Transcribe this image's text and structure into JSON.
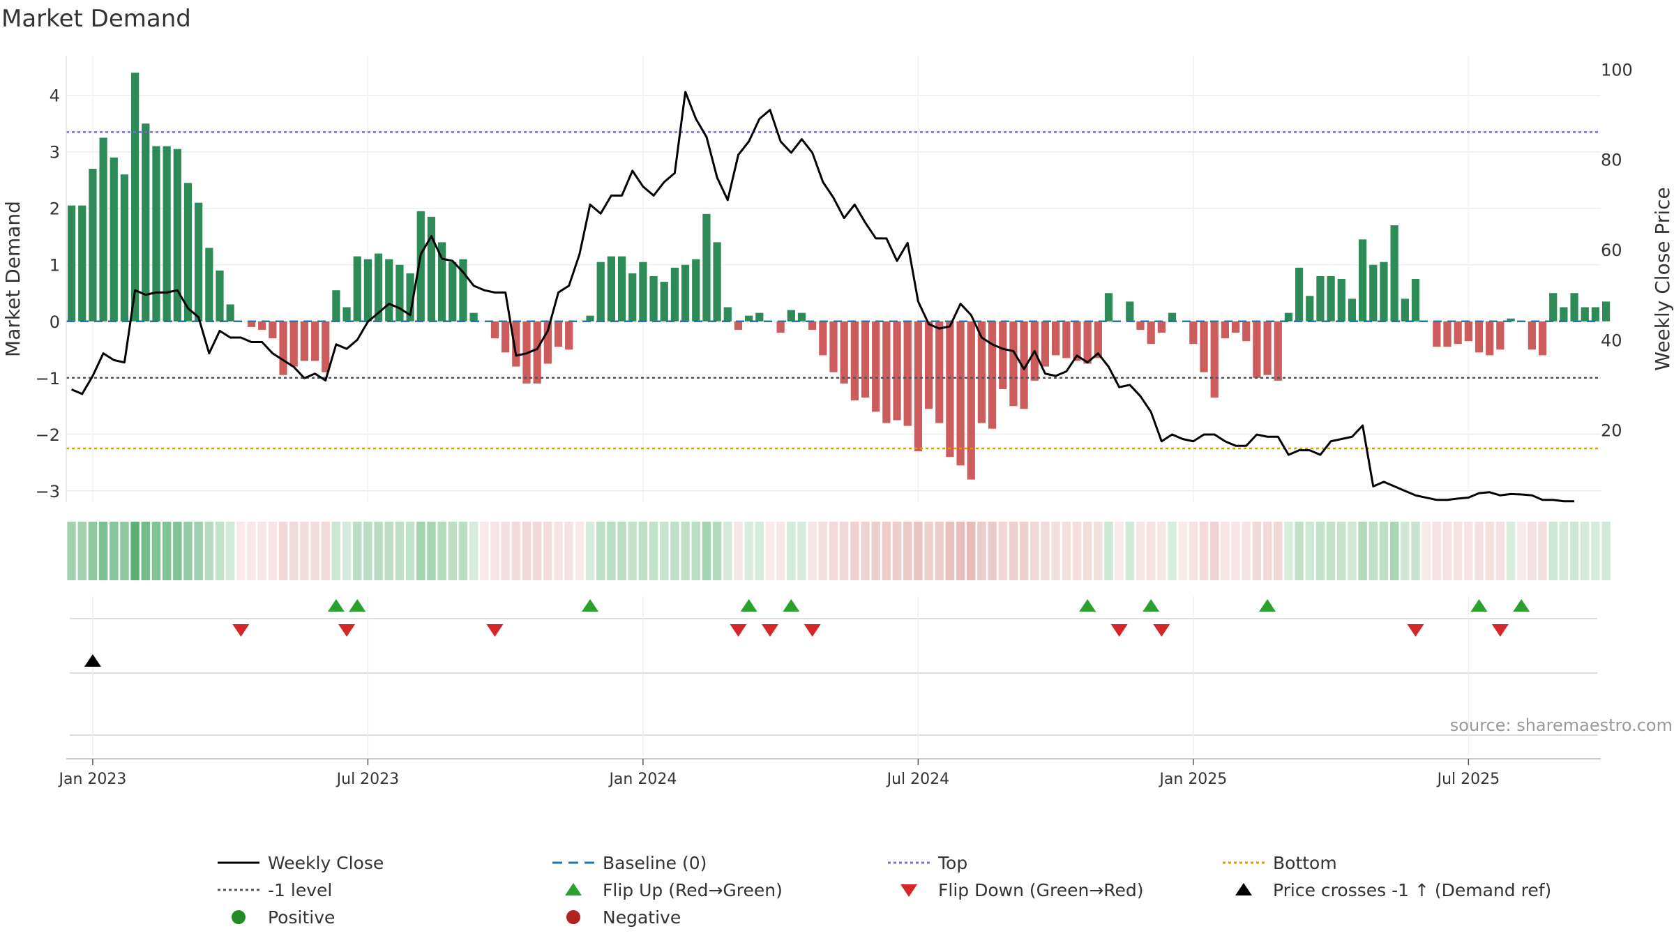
{
  "chart_data": {
    "type": "bar+line",
    "title": "Market Demand",
    "source": "source: sharemaestro.com",
    "y_left": {
      "label": "Market Demand",
      "ticks": [
        -3,
        -2,
        -1,
        0,
        1,
        2,
        3,
        4
      ],
      "tick_labels": [
        "−3",
        "−2",
        "−1",
        "0",
        "1",
        "2",
        "3",
        "4"
      ],
      "range": [
        -3.2,
        4.7
      ]
    },
    "y_right": {
      "label": "Weekly Close Price",
      "ticks": [
        20,
        40,
        60,
        80,
        100
      ],
      "tick_labels": [
        "20",
        "40",
        "60",
        "80",
        "100"
      ],
      "range": [
        4,
        103
      ]
    },
    "x_ticks": [
      {
        "label": "Jan 2023",
        "week": 2
      },
      {
        "label": "Jul 2023",
        "week": 28
      },
      {
        "label": "Jan 2024",
        "week": 54
      },
      {
        "label": "Jul 2024",
        "week": 80
      },
      {
        "label": "Jan 2025",
        "week": 106
      },
      {
        "label": "Jul 2025",
        "week": 132
      }
    ],
    "x_range": [
      -0.5,
      144.5
    ],
    "reference_lines": {
      "baseline": 0,
      "top": 3.35,
      "bottom": -2.25,
      "minus_one": -1.0
    },
    "demand": [
      2.05,
      2.05,
      2.7,
      3.25,
      2.9,
      2.6,
      4.4,
      3.5,
      3.1,
      3.1,
      3.05,
      2.45,
      2.1,
      1.3,
      0.9,
      0.3,
      0.0,
      -0.1,
      -0.15,
      -0.3,
      -0.95,
      -0.8,
      -0.7,
      -0.7,
      -0.9,
      0.55,
      0.25,
      1.15,
      1.1,
      1.2,
      1.1,
      1.0,
      0.85,
      1.95,
      1.85,
      1.4,
      1.05,
      1.1,
      0.15,
      0.0,
      -0.3,
      -0.55,
      -0.8,
      -1.1,
      -1.1,
      -0.75,
      -0.45,
      -0.5,
      0.0,
      0.1,
      1.05,
      1.15,
      1.15,
      0.85,
      1.05,
      0.8,
      0.7,
      0.95,
      1.0,
      1.1,
      1.9,
      1.4,
      0.25,
      -0.15,
      0.1,
      0.15,
      0.0,
      -0.2,
      0.2,
      0.15,
      -0.15,
      -0.6,
      -0.9,
      -1.1,
      -1.4,
      -1.35,
      -1.6,
      -1.8,
      -1.75,
      -1.85,
      -2.3,
      -1.55,
      -1.8,
      -2.4,
      -2.55,
      -2.8,
      -1.8,
      -1.9,
      -1.2,
      -1.5,
      -1.55,
      -1.05,
      -0.8,
      -0.6,
      -0.65,
      -0.7,
      -0.75,
      -0.65,
      0.5,
      0.0,
      0.35,
      -0.15,
      -0.4,
      -0.2,
      0.15,
      0.0,
      -0.4,
      -0.9,
      -1.35,
      -0.3,
      -0.2,
      -0.35,
      -1.0,
      -0.95,
      -1.05,
      0.15,
      0.95,
      0.45,
      0.8,
      0.8,
      0.75,
      0.4,
      1.45,
      1.0,
      1.05,
      1.7,
      0.4,
      0.75,
      0.0,
      -0.45,
      -0.45,
      -0.4,
      -0.35,
      -0.55,
      -0.6,
      -0.5,
      0.05,
      0.0,
      -0.5,
      -0.6,
      0.5,
      0.25,
      0.5,
      0.25,
      0.25,
      0.35
    ],
    "weekly_close": [
      29,
      28,
      32,
      37,
      35.5,
      35,
      51,
      50,
      50.5,
      50.5,
      51,
      47,
      45,
      37,
      42,
      40.5,
      40.5,
      39.5,
      39.5,
      37,
      35.5,
      34,
      31.5,
      32.5,
      31,
      39,
      38,
      40,
      44,
      46,
      48,
      47,
      45.5,
      59,
      63,
      58,
      57.5,
      55,
      52,
      51,
      50.5,
      50.5,
      36.5,
      37,
      38,
      42,
      50.5,
      52,
      59,
      70,
      68,
      72,
      72,
      77.5,
      74,
      72,
      75,
      77,
      95,
      89,
      85,
      76,
      71,
      81,
      84,
      89,
      91,
      84,
      81.5,
      84.5,
      81.5,
      75,
      71.5,
      67,
      70,
      66,
      62.5,
      62.5,
      57.5,
      61.5,
      48.5,
      43.5,
      42.5,
      43,
      48,
      45.5,
      40.5,
      39,
      38,
      37.5,
      33.5,
      37.5,
      32.5,
      32,
      33,
      36.5,
      35,
      37,
      34,
      29.5,
      30,
      27.5,
      24,
      17.5,
      19,
      18,
      17.5,
      19,
      19,
      17.5,
      16.5,
      16.5,
      19,
      18.5,
      18.5,
      14.5,
      15.5,
      15.5,
      14.5,
      17.5,
      18,
      18.5,
      21,
      7.5,
      8.5,
      7.5,
      6.5,
      5.5,
      5,
      4.5,
      4.5,
      4.8,
      5,
      6,
      6.2,
      5.5,
      5.8,
      5.7,
      5.5,
      4.5,
      4.5,
      4.2,
      4.2
    ],
    "signals": {
      "flip_up_weeks": [
        25,
        27,
        49,
        64,
        68,
        96,
        102,
        113,
        133,
        137
      ],
      "flip_down_weeks": [
        16,
        26,
        40,
        63,
        66,
        70,
        99,
        103,
        127,
        135
      ],
      "price_cross_weeks": [
        2
      ]
    },
    "colors": {
      "positive_bar": "#2e8b57",
      "negative_bar": "#cd5c5c",
      "close_line": "#000000",
      "baseline": "#1f77b4",
      "top": "#7b68ee",
      "bottom": "#e69500",
      "minus_one": "#555555",
      "flip_up": "#2ca02c",
      "flip_down": "#d62728",
      "price_cross": "#000000",
      "positive_dot": "#228b22",
      "negative_dot": "#b22222",
      "heat_positive": "#3ea35a",
      "heat_negative": "#c0504d"
    },
    "legend": [
      {
        "label": "Weekly Close",
        "marker": "solid-line",
        "color": "#000000"
      },
      {
        "label": "Baseline (0)",
        "marker": "dash-line",
        "color": "#1f77b4"
      },
      {
        "label": "Top",
        "marker": "dot-line",
        "color": "#7b68ee"
      },
      {
        "label": "Bottom",
        "marker": "dot-line",
        "color": "#e69500"
      },
      {
        "label": "-1 level",
        "marker": "dot-line",
        "color": "#555555"
      },
      {
        "label": "Flip Up (Red→Green)",
        "marker": "triangle-up",
        "color": "#2ca02c"
      },
      {
        "label": "Flip Down (Green→Red)",
        "marker": "triangle-down",
        "color": "#d62728"
      },
      {
        "label": "Price crosses -1 ↑ (Demand ref)",
        "marker": "triangle-up",
        "color": "#000000"
      },
      {
        "label": "Positive",
        "marker": "dot",
        "color": "#228b22"
      },
      {
        "label": "Negative",
        "marker": "dot",
        "color": "#b22222"
      }
    ]
  }
}
